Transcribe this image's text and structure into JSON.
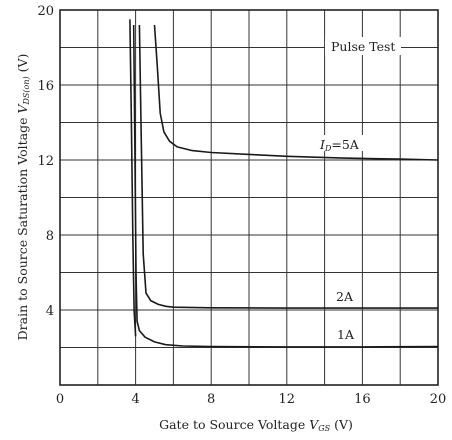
{
  "chart_data": {
    "type": "line",
    "xlabel_prefix": "Gate to Source Voltage ",
    "xlabel_symbol": "V",
    "xlabel_sub": "GS",
    "xlabel_unit": " (V)",
    "ylabel_prefix": "Drain to Source Saturation Voltage  ",
    "ylabel_symbol": "V",
    "ylabel_sub": "DS(on)",
    "ylabel_unit": "  (V)",
    "xlim": [
      0,
      20
    ],
    "ylim": [
      0,
      20
    ],
    "x_ticks": [
      "0",
      "4",
      "8",
      "12",
      "16",
      "20"
    ],
    "y_ticks": [
      "0",
      "4",
      "8",
      "12",
      "16",
      "20"
    ],
    "grid": true,
    "annotation": "Pulse Test",
    "series": [
      {
        "name_prefix": "I",
        "name_sub": "D",
        "name_suffix": "=5A",
        "x": [
          5.0,
          5.15,
          5.3,
          5.5,
          5.8,
          6.2,
          7.0,
          8.0,
          10.0,
          12.0,
          15.0,
          18.0,
          20.0
        ],
        "y": [
          19.2,
          17.0,
          14.5,
          13.5,
          13.0,
          12.7,
          12.5,
          12.4,
          12.3,
          12.2,
          12.1,
          12.05,
          12.0
        ]
      },
      {
        "name": "2A",
        "x": [
          4.2,
          4.3,
          4.4,
          4.55,
          4.8,
          5.2,
          5.6,
          6.0,
          8.0,
          12.0,
          16.0,
          20.0
        ],
        "y": [
          19.2,
          13.0,
          7.0,
          4.9,
          4.5,
          4.3,
          4.2,
          4.15,
          4.12,
          4.1,
          4.1,
          4.1
        ]
      },
      {
        "name": "1A",
        "x": [
          3.9,
          3.97,
          4.02,
          4.08,
          4.2,
          4.5,
          5.0,
          5.6,
          6.5,
          8.0,
          12.0,
          16.0,
          20.0
        ],
        "y": [
          19.2,
          12.0,
          6.0,
          3.4,
          2.9,
          2.55,
          2.3,
          2.15,
          2.08,
          2.05,
          2.03,
          2.03,
          2.05
        ]
      },
      {
        "name": "",
        "x": [
          3.7,
          3.78,
          3.85,
          3.92,
          4.0
        ],
        "y": [
          19.5,
          14.0,
          8.0,
          4.0,
          2.6
        ]
      }
    ]
  }
}
